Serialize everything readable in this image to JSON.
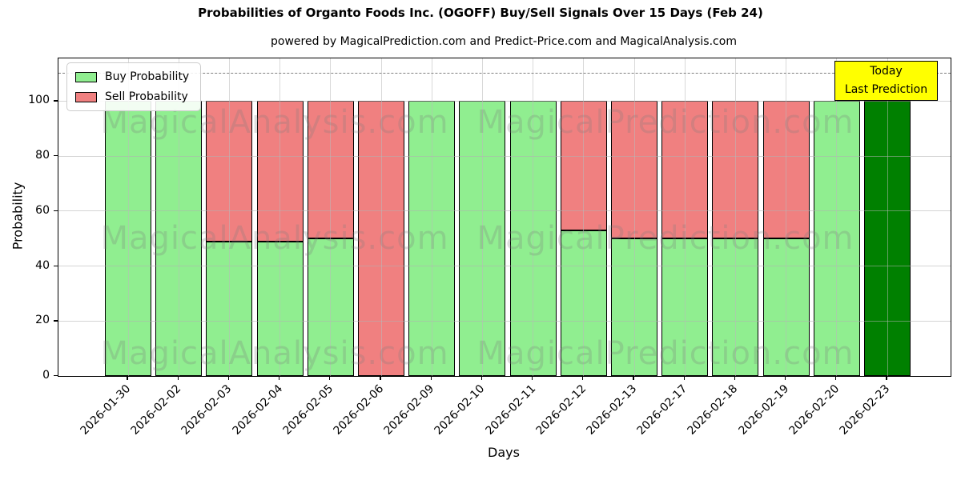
{
  "header": {
    "title": "Probabilities of Organto Foods Inc. (OGOFF) Buy/Sell Signals Over 15 Days (Feb 24)",
    "subtitle": "powered by MagicalPrediction.com and Predict-Price.com and MagicalAnalysis.com"
  },
  "chart_data": {
    "type": "bar",
    "stacked": true,
    "title": "Probabilities of Organto Foods Inc. (OGOFF) Buy/Sell Signals Over 15 Days (Feb 24)",
    "subtitle": "powered by MagicalPrediction.com and Predict-Price.com and MagicalAnalysis.com",
    "xlabel": "Days",
    "ylabel": "Probability",
    "ylim": [
      0,
      115.5
    ],
    "yticks": [
      0,
      20,
      40,
      60,
      80,
      100
    ],
    "grid": true,
    "grid_on_top": true,
    "dashed_guideline_y": 110,
    "categories": [
      "2026-01-30",
      "2026-02-02",
      "2026-02-03",
      "2026-02-04",
      "2026-02-05",
      "2026-02-06",
      "2026-02-09",
      "2026-02-10",
      "2026-02-11",
      "2026-02-12",
      "2026-02-13",
      "2026-02-17",
      "2026-02-18",
      "2026-02-19",
      "2026-02-20",
      "2026-02-23"
    ],
    "series": [
      {
        "name": "Buy Probability",
        "color": "#90EE90",
        "values": [
          100,
          100,
          49,
          49,
          50,
          0,
          100,
          100,
          100,
          53,
          50,
          50,
          50,
          50,
          100,
          100
        ]
      },
      {
        "name": "Sell Probability",
        "color": "#F08080",
        "values": [
          0,
          0,
          51,
          51,
          50,
          100,
          0,
          0,
          0,
          47,
          50,
          50,
          50,
          50,
          0,
          0
        ]
      }
    ],
    "highlight": {
      "index": 15,
      "color": "#008000",
      "meaning": "last prediction bar"
    },
    "legend": {
      "position": "upper-left"
    },
    "annotation": {
      "line1": "Today",
      "line2": "Last Prediction",
      "bg_color": "#FFFF00"
    },
    "watermark": {
      "left_text": "MagicalAnalysis.com",
      "right_text": "MagicalPrediction.com"
    },
    "colors": {
      "bar_edge": "#000000",
      "grid": "#b0b0b0",
      "dashed_line": "#7f7f7f",
      "axis": "#000000"
    }
  }
}
